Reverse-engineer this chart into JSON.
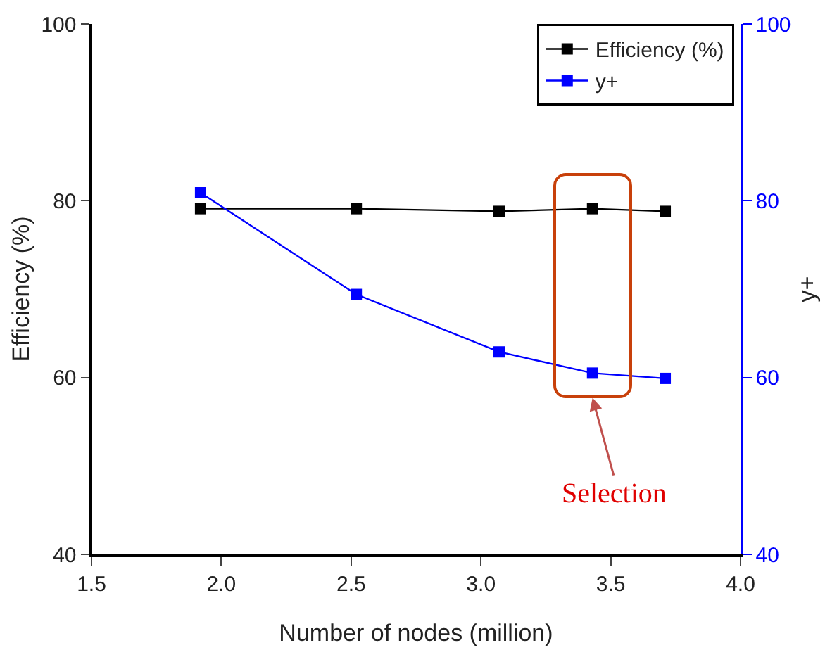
{
  "chart_data": {
    "type": "line",
    "xlabel": "Number of nodes (million)",
    "ylabel": "Efficiency (%)",
    "y2label": "y+",
    "x": [
      1.92,
      2.52,
      3.07,
      3.43,
      3.71
    ],
    "series": [
      {
        "name": "Efficiency (%)",
        "color": "#000000",
        "values": [
          79.1,
          79.1,
          78.8,
          79.1,
          78.8
        ]
      },
      {
        "name": "y+",
        "color": "#0000ff",
        "axis": "y2",
        "values": [
          80.9,
          69.4,
          62.9,
          60.5,
          59.9
        ]
      }
    ],
    "xlim": [
      1.5,
      4.0
    ],
    "xticks": [
      {
        "value": 1.5,
        "label": "1.5"
      },
      {
        "value": 2.0,
        "label": "2.0"
      },
      {
        "value": 2.5,
        "label": "2.5"
      },
      {
        "value": 3.0,
        "label": "3.0"
      },
      {
        "value": 3.5,
        "label": "3.5"
      },
      {
        "value": 4.0,
        "label": "4.0"
      }
    ],
    "ylim": [
      40,
      100
    ],
    "yticks": [
      40,
      60,
      80,
      100
    ],
    "y2lim": [
      40,
      100
    ],
    "y2ticks": [
      40,
      60,
      80,
      100
    ],
    "annotations": [
      "Selection"
    ],
    "legend": "top right",
    "marker": "square",
    "line_style": "solid",
    "grid": false
  }
}
